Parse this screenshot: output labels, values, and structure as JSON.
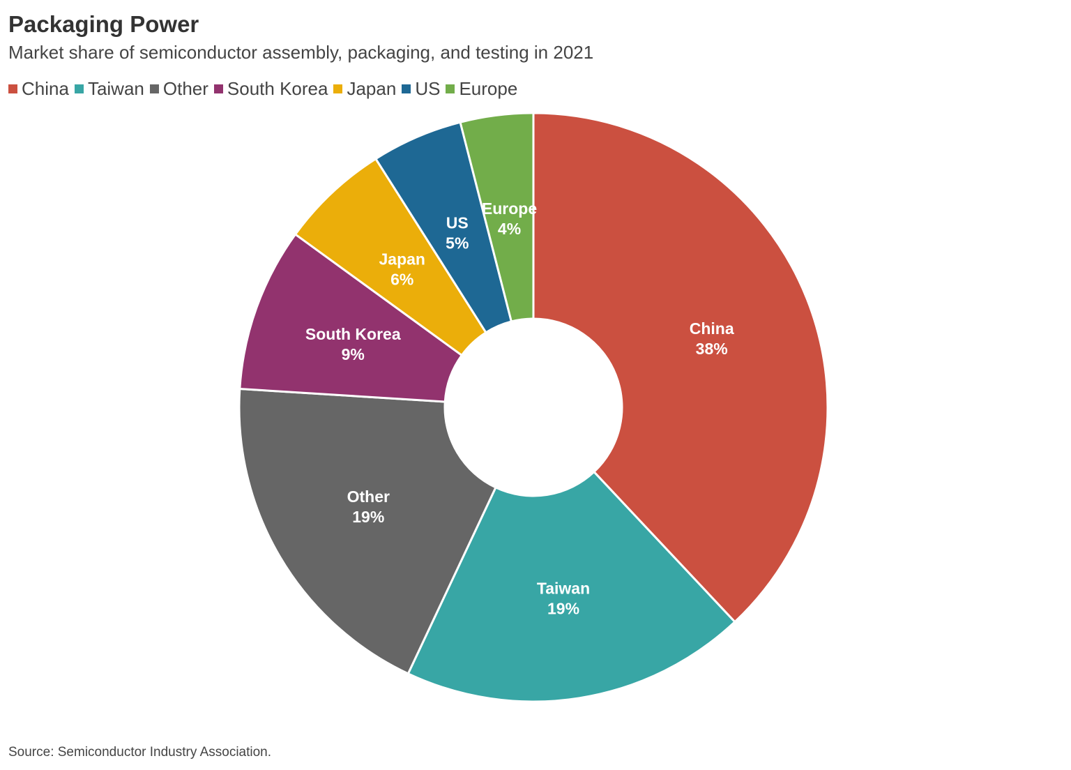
{
  "chart_data": {
    "type": "pie",
    "variant": "donut",
    "title": "Packaging Power",
    "subtitle": "Market share of semiconductor assembly, packaging, and testing in 2021",
    "source": "Source: Semiconductor Industry Association.",
    "legend_position": "top-left",
    "slices": [
      {
        "name": "China",
        "value": 38,
        "label": "38%",
        "color": "#CB5040"
      },
      {
        "name": "Taiwan",
        "value": 19,
        "label": "19%",
        "color": "#38A6A5"
      },
      {
        "name": "Other",
        "value": 19,
        "label": "19%",
        "color": "#666666"
      },
      {
        "name": "South Korea",
        "value": 9,
        "label": "9%",
        "color": "#92336E"
      },
      {
        "name": "Japan",
        "value": 6,
        "label": "6%",
        "color": "#EBAE0A"
      },
      {
        "name": "US",
        "value": 5,
        "label": "5%",
        "color": "#1E6894"
      },
      {
        "name": "Europe",
        "value": 4,
        "label": "4%",
        "color": "#72AD4A"
      }
    ]
  }
}
